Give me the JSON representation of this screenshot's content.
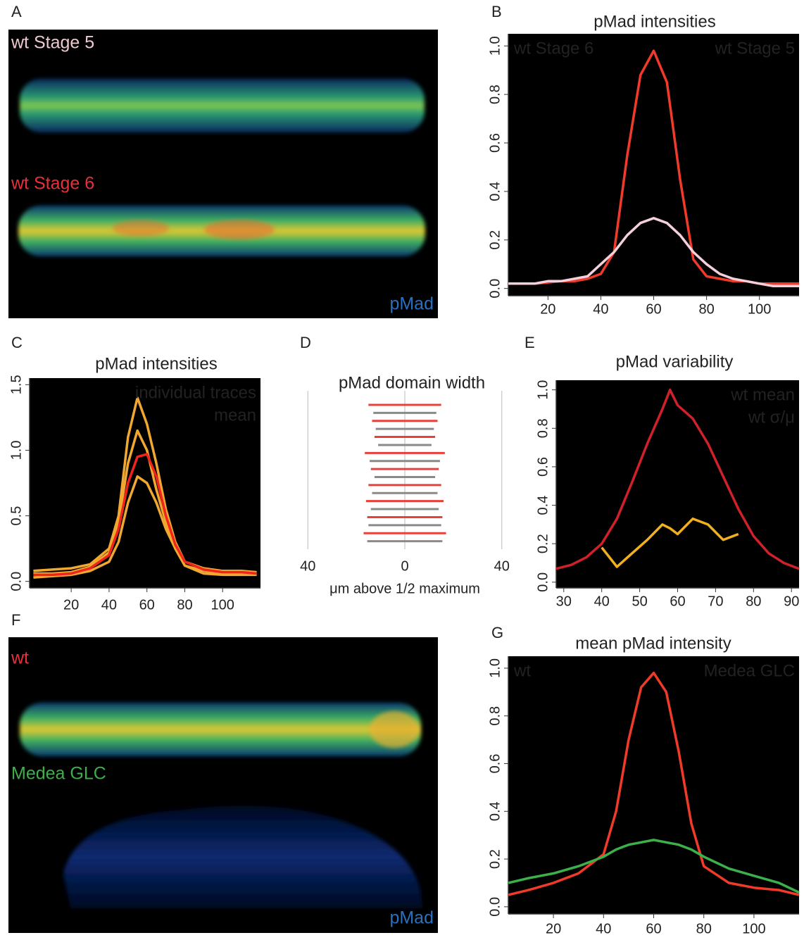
{
  "images": [
    {
      "panel": "A",
      "labels": [
        "wt Stage 5",
        "wt Stage 6"
      ],
      "label_colors": [
        "#f0c8d0",
        "#e8303a"
      ],
      "stain": "pMad"
    },
    {
      "panel": "F",
      "labels": [
        "wt",
        "Medea GLC"
      ],
      "label_colors": [
        "#e8303a",
        "#3cb04a"
      ],
      "stain": "pMad"
    }
  ],
  "chart_data": [
    {
      "panel": "B",
      "type": "line",
      "title": "pMad intensities",
      "x": [
        5,
        10,
        15,
        20,
        25,
        30,
        35,
        40,
        45,
        50,
        55,
        60,
        65,
        70,
        75,
        80,
        85,
        90,
        95,
        100,
        105,
        110,
        115
      ],
      "series": [
        {
          "name": "wt Stage 6",
          "color": "#f03a2a",
          "legend": "top-left",
          "values": [
            0.02,
            0.02,
            0.02,
            0.025,
            0.03,
            0.03,
            0.04,
            0.06,
            0.15,
            0.55,
            0.88,
            0.98,
            0.85,
            0.45,
            0.12,
            0.05,
            0.04,
            0.03,
            0.03,
            0.02,
            0.02,
            0.02,
            0.02
          ]
        },
        {
          "name": "wt Stage 5",
          "color": "#f4d0dc",
          "legend": "top-right",
          "values": [
            0.02,
            0.02,
            0.02,
            0.03,
            0.03,
            0.04,
            0.05,
            0.1,
            0.15,
            0.22,
            0.27,
            0.29,
            0.27,
            0.22,
            0.15,
            0.1,
            0.06,
            0.04,
            0.03,
            0.02,
            0.01,
            0.01,
            0.01
          ]
        }
      ],
      "xlim": [
        5,
        115
      ],
      "xticks": [
        20,
        40,
        60,
        80,
        100
      ],
      "ylim": [
        -0.03,
        1.05
      ],
      "yticks": [
        {
          "value": 0,
          "label": "0.0"
        },
        0.2,
        0.4,
        0.6,
        0.8,
        {
          "value": 1,
          "label": "1.0"
        }
      ]
    },
    {
      "panel": "C",
      "type": "line",
      "title": "pMad intensities",
      "x": [
        0,
        10,
        20,
        30,
        40,
        45,
        50,
        55,
        60,
        65,
        70,
        75,
        80,
        90,
        100,
        110,
        118
      ],
      "series": [
        {
          "name": "individual traces",
          "color": "#f0a830",
          "legend": "top-right",
          "values": [
            0.08,
            0.09,
            0.1,
            0.13,
            0.25,
            0.5,
            1.1,
            1.4,
            1.2,
            0.9,
            0.55,
            0.3,
            0.15,
            0.1,
            0.08,
            0.08,
            0.07
          ]
        },
        {
          "color": "#f0a830",
          "values": [
            0.03,
            0.04,
            0.05,
            0.08,
            0.15,
            0.3,
            0.6,
            0.8,
            0.75,
            0.6,
            0.4,
            0.25,
            0.12,
            0.06,
            0.05,
            0.05,
            0.05
          ]
        },
        {
          "color": "#f0a830",
          "values": [
            0.06,
            0.06,
            0.07,
            0.11,
            0.22,
            0.45,
            0.9,
            1.15,
            1.0,
            0.7,
            0.45,
            0.25,
            0.12,
            0.08,
            0.06,
            0.06,
            0.06
          ]
        },
        {
          "name": "mean",
          "color": "#f0241c",
          "legend": "top-right",
          "values": [
            0.05,
            0.05,
            0.06,
            0.1,
            0.2,
            0.4,
            0.75,
            0.95,
            0.97,
            0.8,
            0.5,
            0.28,
            0.15,
            0.09,
            0.07,
            0.07,
            0.06
          ]
        }
      ],
      "xlim": [
        -2,
        120
      ],
      "xticks": [
        20,
        40,
        60,
        80,
        100
      ],
      "ylim": [
        -0.05,
        1.55
      ],
      "yticks": [
        {
          "value": 0,
          "label": "0.0"
        },
        0.5,
        {
          "value": 1,
          "label": "1.0"
        },
        1.5
      ]
    },
    {
      "panel": "D",
      "type": "bar",
      "title": "pMad domain width",
      "xlabel": "μm above 1/2 maximum",
      "series": [
        {
          "color": "#e8403a",
          "values": [
            30,
            27,
            25,
            33,
            28,
            30,
            32,
            31,
            34
          ]
        },
        {
          "color": "#8a8a8a",
          "values": [
            26,
            24,
            22,
            29,
            25,
            27,
            28,
            30,
            31
          ]
        }
      ],
      "xlim": [
        -45,
        45
      ],
      "xticks": [
        {
          "value": -40,
          "label": "40"
        },
        0,
        40
      ],
      "grid": true
    },
    {
      "panel": "E",
      "type": "line",
      "title": "pMad variability",
      "x": [
        28,
        32,
        36,
        40,
        44,
        48,
        52,
        56,
        58,
        60,
        64,
        68,
        72,
        76,
        80,
        84,
        88,
        92
      ],
      "series": [
        {
          "name": "wt mean",
          "color": "#d0202a",
          "legend": "top-right",
          "values": [
            0.07,
            0.09,
            0.13,
            0.2,
            0.33,
            0.52,
            0.72,
            0.9,
            1.0,
            0.92,
            0.85,
            0.72,
            0.55,
            0.38,
            0.24,
            0.15,
            0.1,
            0.07
          ]
        },
        {
          "name": "wt σ/μ",
          "color": "#f0b020",
          "legend": "top-right",
          "values": [
            null,
            null,
            null,
            0.18,
            0.08,
            0.15,
            0.22,
            0.3,
            0.28,
            0.25,
            0.33,
            0.3,
            0.22,
            0.25,
            null,
            null,
            null,
            null
          ]
        }
      ],
      "xlim": [
        28,
        92
      ],
      "xticks": [
        30,
        40,
        50,
        60,
        70,
        80,
        90
      ],
      "ylim": [
        -0.03,
        1.05
      ],
      "yticks": [
        {
          "value": 0,
          "label": "0.0"
        },
        0.2,
        0.4,
        0.6,
        0.8,
        {
          "value": 1,
          "label": "1.0"
        }
      ]
    },
    {
      "panel": "G",
      "type": "line",
      "title": "mean pMad intensity",
      "x": [
        2,
        10,
        20,
        30,
        40,
        45,
        50,
        55,
        60,
        65,
        70,
        75,
        80,
        90,
        100,
        110,
        118
      ],
      "series": [
        {
          "name": "wt",
          "color": "#f03a2a",
          "legend": "top-left",
          "values": [
            0.05,
            0.07,
            0.1,
            0.14,
            0.22,
            0.4,
            0.7,
            0.92,
            0.98,
            0.9,
            0.65,
            0.35,
            0.17,
            0.1,
            0.08,
            0.07,
            0.05
          ]
        },
        {
          "name": "Medea GLC",
          "color": "#3cb04a",
          "legend": "top-right",
          "values": [
            0.1,
            0.12,
            0.14,
            0.17,
            0.21,
            0.24,
            0.26,
            0.27,
            0.28,
            0.27,
            0.26,
            0.24,
            0.21,
            0.16,
            0.13,
            0.1,
            0.06
          ]
        }
      ],
      "xlim": [
        2,
        118
      ],
      "xticks": [
        20,
        40,
        60,
        80,
        100
      ],
      "ylim": [
        -0.03,
        1.05
      ],
      "yticks": [
        {
          "value": 0,
          "label": "0.0"
        },
        0.2,
        0.4,
        0.6,
        0.8,
        {
          "value": 1,
          "label": "1.0"
        }
      ]
    }
  ]
}
